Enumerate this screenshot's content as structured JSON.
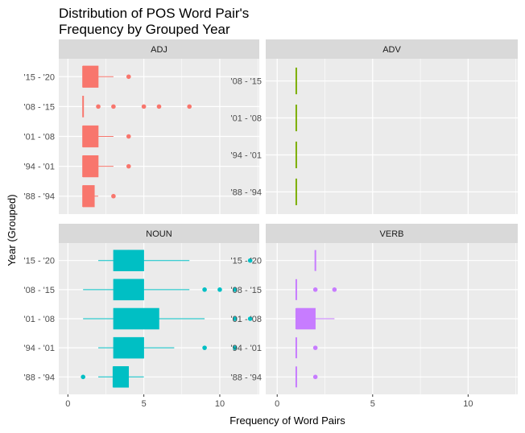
{
  "chart_data": {
    "type": "boxplot",
    "title_line1": "Distribution of POS Word Pair's",
    "title_line2": "Frequency by Grouped Year",
    "xlabel": "Frequency of Word Pairs",
    "ylabel": "Year (Grouped)",
    "xlim": [
      -0.6,
      12.6
    ],
    "x_ticks": [
      0,
      5,
      10
    ],
    "grid": true,
    "orientation": "horizontal",
    "panels": [
      {
        "name": "ADJ",
        "color": "#F8766D",
        "categories": [
          "'15 - '20",
          "'08 - '15",
          "'01 - '08",
          "'94 - '01",
          "'88 - '94"
        ],
        "boxes": [
          {
            "min": 1,
            "q1": 1,
            "median": 1,
            "q3": 2,
            "max": 3,
            "outliers": [
              4
            ]
          },
          {
            "min": 1,
            "q1": 1,
            "median": 1,
            "q3": 1,
            "max": 1,
            "outliers": [
              2,
              3,
              5,
              6,
              8
            ]
          },
          {
            "min": 1,
            "q1": 1,
            "median": 1,
            "q3": 2,
            "max": 3,
            "outliers": [
              4
            ]
          },
          {
            "min": 1,
            "q1": 1,
            "median": 1,
            "q3": 2,
            "max": 3,
            "outliers": [
              4
            ]
          },
          {
            "min": 1,
            "q1": 1,
            "median": 1,
            "q3": 1.75,
            "max": 2,
            "outliers": [
              3
            ]
          }
        ]
      },
      {
        "name": "ADV",
        "color": "#7CAE00",
        "categories": [
          "'08 - '15",
          "'01 - '08",
          "'94 - '01",
          "'88 - '94"
        ],
        "boxes": [
          {
            "min": 1,
            "q1": 1,
            "median": 1,
            "q3": 1,
            "max": 1,
            "outliers": []
          },
          {
            "min": 1,
            "q1": 1,
            "median": 1,
            "q3": 1,
            "max": 1,
            "outliers": []
          },
          {
            "min": 1,
            "q1": 1,
            "median": 1,
            "q3": 1,
            "max": 1,
            "outliers": []
          },
          {
            "min": 1,
            "q1": 1,
            "median": 1,
            "q3": 1,
            "max": 1,
            "outliers": []
          }
        ]
      },
      {
        "name": "NOUN",
        "color": "#00BFC4",
        "categories": [
          "'15 - '20",
          "'08 - '15",
          "'01 - '08",
          "'94 - '01",
          "'88 - '94"
        ],
        "boxes": [
          {
            "min": 2,
            "q1": 3,
            "median": 4,
            "q3": 5,
            "max": 8,
            "outliers": [
              12
            ]
          },
          {
            "min": 1,
            "q1": 3,
            "median": 4,
            "q3": 5,
            "max": 8,
            "outliers": [
              9,
              10,
              11
            ]
          },
          {
            "min": 1,
            "q1": 3,
            "median": 4,
            "q3": 6,
            "max": 9,
            "outliers": [
              11,
              12
            ]
          },
          {
            "min": 2,
            "q1": 3,
            "median": 4,
            "q3": 5,
            "max": 7,
            "outliers": [
              9,
              11
            ]
          },
          {
            "min": 2,
            "q1": 3,
            "median": 3,
            "q3": 4,
            "max": 5,
            "outliers": [
              1
            ]
          }
        ]
      },
      {
        "name": "VERB",
        "color": "#C77CFF",
        "categories": [
          "'15 - '20",
          "'08 - '15",
          "'01 - '08",
          "'94 - '01",
          "'88 - '94"
        ],
        "boxes": [
          {
            "min": 2,
            "q1": 2,
            "median": 2,
            "q3": 2,
            "max": 2,
            "outliers": []
          },
          {
            "min": 1,
            "q1": 1,
            "median": 1,
            "q3": 1,
            "max": 1,
            "outliers": [
              2,
              3
            ]
          },
          {
            "min": 1,
            "q1": 1,
            "median": 1,
            "q3": 2,
            "max": 3,
            "outliers": []
          },
          {
            "min": 1,
            "q1": 1,
            "median": 1,
            "q3": 1,
            "max": 1,
            "outliers": [
              2
            ]
          },
          {
            "min": 1,
            "q1": 1,
            "median": 1,
            "q3": 1,
            "max": 1,
            "outliers": [
              2
            ]
          }
        ]
      }
    ]
  }
}
